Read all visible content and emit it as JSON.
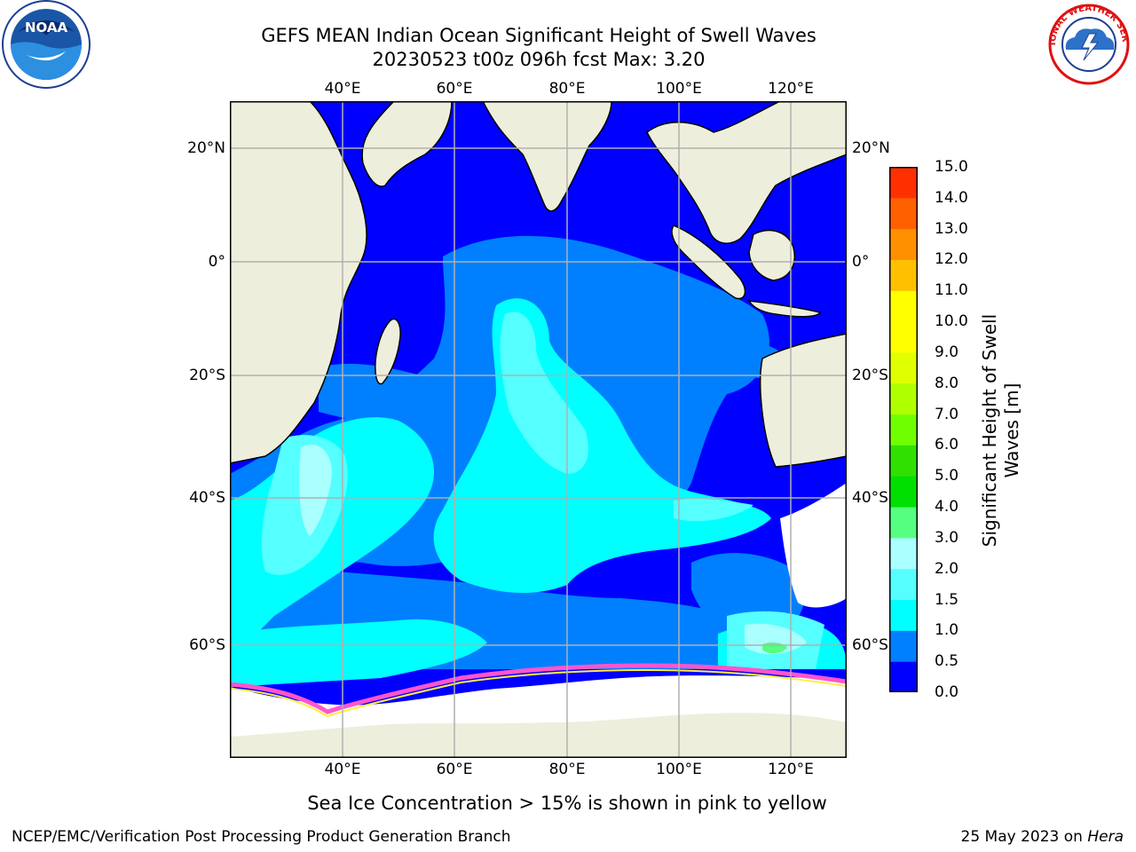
{
  "title": {
    "line1": "GEFS MEAN Indian Ocean Significant Height of Swell Waves",
    "line2": "20230523 t00z 096h fcst   Max: 3.20"
  },
  "map": {
    "lon_ticks": [
      "40°E",
      "60°E",
      "80°E",
      "100°E",
      "120°E"
    ],
    "lat_ticks": [
      "20°N",
      "0°",
      "20°S",
      "40°S",
      "60°S"
    ],
    "lon_values": [
      40,
      60,
      80,
      100,
      120
    ],
    "lat_values": [
      20,
      0,
      -20,
      -40,
      -60
    ],
    "lon_range": [
      20,
      130
    ],
    "lat_range": [
      -72,
      28
    ],
    "colors": {
      "land": "#eeeedc",
      "ice_free_white": "#ffffff",
      "grid": "#b0b0b0",
      "ice_edge": "#ff66cc"
    }
  },
  "colorbar": {
    "title_line1": "Significant Height of Swell",
    "title_line2": "Waves [m]",
    "labels": [
      "15.0",
      "14.0",
      "13.0",
      "12.0",
      "11.0",
      "10.0",
      "9.0",
      "8.0",
      "7.0",
      "6.0",
      "5.0",
      "4.0",
      "3.0",
      "2.0",
      "1.5",
      "1.0",
      "0.5",
      "0.0"
    ],
    "colors": [
      "#0000ff",
      "#0080ff",
      "#00ffff",
      "#55ffff",
      "#aaffff",
      "#55ff80",
      "#00e000",
      "#30e000",
      "#70ff00",
      "#b0ff00",
      "#e0ff00",
      "#ffff00",
      "#ffff00",
      "#ffc000",
      "#ff9000",
      "#ff6000",
      "#ff3000",
      "#ff0000"
    ]
  },
  "caption": "Sea Ice Concentration > 15% is shown in pink to yellow",
  "footer": {
    "left": "NCEP/EMC/Verification Post Processing Product Generation Branch",
    "right_date": "25 May 2023 on",
    "right_host": "Hera"
  },
  "logos": {
    "noaa_text": "NOAA",
    "nws_text": "NATIONAL WEATHER SERVICE"
  }
}
